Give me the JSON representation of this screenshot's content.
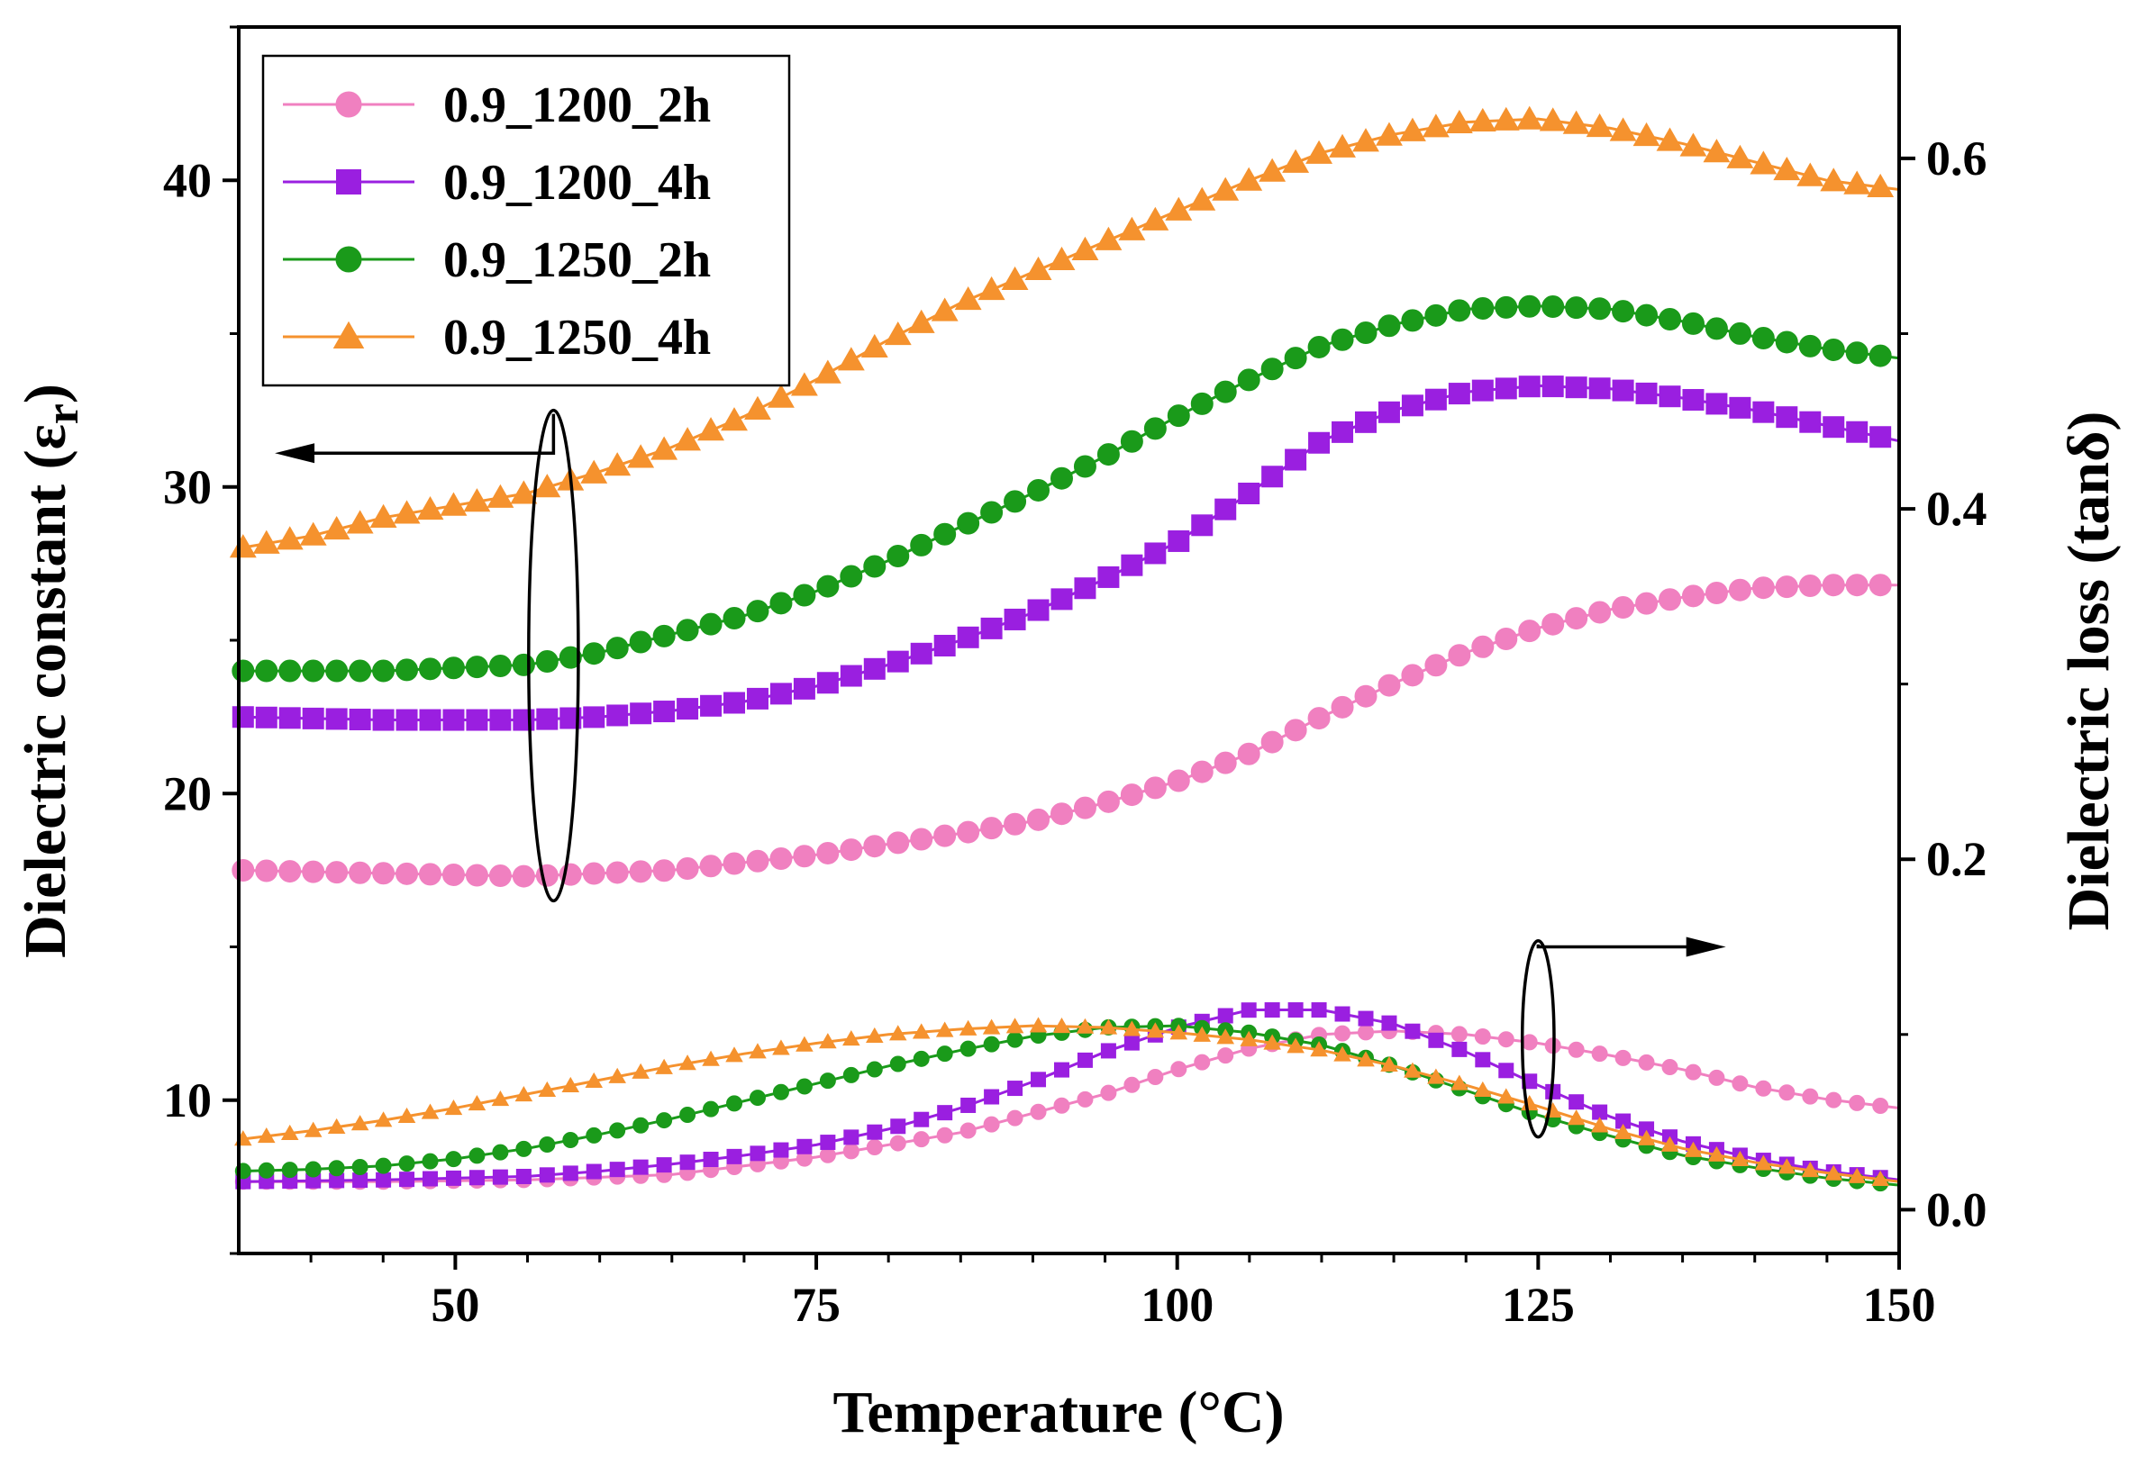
{
  "chart_data": {
    "type": "line",
    "title": "",
    "xlabel": "Temperature (°C)",
    "ylabel_left_text": "Dielectric constant (",
    "ylabel_left_symbol": "ε",
    "ylabel_left_subscript": "r",
    "ylabel_left_close": ")",
    "ylabel_right": "Dielectric loss (tanδ)",
    "xlim": [
      35,
      150
    ],
    "ylim_left": [
      5,
      45
    ],
    "ylim_right": [
      -0.025,
      0.675
    ],
    "x_ticks": [
      50,
      75,
      100,
      125,
      150
    ],
    "x_tick_labels": [
      "50",
      "75",
      "100",
      "125",
      "150"
    ],
    "y_left_ticks": [
      10,
      20,
      30,
      40
    ],
    "y_left_tick_labels": [
      "10",
      "20",
      "30",
      "40"
    ],
    "y_right_ticks": [
      0.0,
      0.2,
      0.4,
      0.6
    ],
    "y_right_tick_labels": [
      "0.0",
      "0.2",
      "0.4",
      "0.6"
    ],
    "legend_position": "top-left",
    "series": [
      {
        "name": "0.9_1200_2h",
        "color": "#f080c0",
        "marker": "circle",
        "axis": "left",
        "points": [
          [
            35,
            17.5
          ],
          [
            45,
            17.4
          ],
          [
            55,
            17.3
          ],
          [
            65,
            17.5
          ],
          [
            75,
            18.0
          ],
          [
            85,
            18.7
          ],
          [
            90,
            19.1
          ],
          [
            95,
            19.7
          ],
          [
            100,
            20.4
          ],
          [
            105,
            21.3
          ],
          [
            110,
            22.5
          ],
          [
            115,
            23.6
          ],
          [
            120,
            24.6
          ],
          [
            125,
            25.4
          ],
          [
            130,
            26.0
          ],
          [
            135,
            26.4
          ],
          [
            140,
            26.7
          ],
          [
            145,
            26.8
          ],
          [
            150,
            26.8
          ]
        ]
      },
      {
        "name": "0.9_1200_4h",
        "color": "#9a1fe0",
        "marker": "square",
        "axis": "left",
        "points": [
          [
            35,
            22.5
          ],
          [
            45,
            22.4
          ],
          [
            55,
            22.4
          ],
          [
            60,
            22.5
          ],
          [
            65,
            22.7
          ],
          [
            70,
            23.0
          ],
          [
            75,
            23.5
          ],
          [
            80,
            24.2
          ],
          [
            85,
            25.0
          ],
          [
            90,
            25.9
          ],
          [
            95,
            27.0
          ],
          [
            100,
            28.2
          ],
          [
            105,
            29.8
          ],
          [
            110,
            31.5
          ],
          [
            115,
            32.5
          ],
          [
            120,
            33.1
          ],
          [
            125,
            33.3
          ],
          [
            130,
            33.2
          ],
          [
            135,
            32.9
          ],
          [
            140,
            32.5
          ],
          [
            145,
            32.0
          ],
          [
            150,
            31.5
          ]
        ]
      },
      {
        "name": "0.9_1250_2h",
        "color": "#1a9a1a",
        "marker": "circle",
        "axis": "left",
        "points": [
          [
            35,
            24.0
          ],
          [
            45,
            24.0
          ],
          [
            55,
            24.2
          ],
          [
            60,
            24.6
          ],
          [
            65,
            25.2
          ],
          [
            70,
            25.8
          ],
          [
            75,
            26.6
          ],
          [
            80,
            27.6
          ],
          [
            85,
            28.7
          ],
          [
            90,
            29.8
          ],
          [
            95,
            31.0
          ],
          [
            100,
            32.3
          ],
          [
            105,
            33.5
          ],
          [
            110,
            34.6
          ],
          [
            115,
            35.3
          ],
          [
            120,
            35.8
          ],
          [
            125,
            35.9
          ],
          [
            130,
            35.8
          ],
          [
            135,
            35.4
          ],
          [
            140,
            34.9
          ],
          [
            145,
            34.5
          ],
          [
            150,
            34.2
          ]
        ]
      },
      {
        "name": "0.9_1250_4h",
        "color": "#f5922e",
        "marker": "triangle",
        "axis": "left",
        "points": [
          [
            35,
            28.0
          ],
          [
            40,
            28.4
          ],
          [
            45,
            29.0
          ],
          [
            50,
            29.4
          ],
          [
            55,
            29.8
          ],
          [
            60,
            30.5
          ],
          [
            65,
            31.3
          ],
          [
            70,
            32.3
          ],
          [
            75,
            33.5
          ],
          [
            80,
            34.8
          ],
          [
            85,
            36.0
          ],
          [
            90,
            37.0
          ],
          [
            95,
            38.0
          ],
          [
            100,
            39.0
          ],
          [
            105,
            40.0
          ],
          [
            110,
            40.9
          ],
          [
            115,
            41.5
          ],
          [
            120,
            41.9
          ],
          [
            125,
            42.0
          ],
          [
            130,
            41.7
          ],
          [
            135,
            41.2
          ],
          [
            140,
            40.6
          ],
          [
            145,
            40.0
          ],
          [
            150,
            39.7
          ]
        ]
      },
      {
        "name": "0.9_1200_2h",
        "color": "#f080c0",
        "marker": "circle",
        "axis": "right",
        "points": [
          [
            35,
            0.016
          ],
          [
            45,
            0.016
          ],
          [
            55,
            0.017
          ],
          [
            65,
            0.02
          ],
          [
            75,
            0.03
          ],
          [
            85,
            0.044
          ],
          [
            95,
            0.066
          ],
          [
            100,
            0.08
          ],
          [
            105,
            0.092
          ],
          [
            110,
            0.1
          ],
          [
            115,
            0.102
          ],
          [
            120,
            0.1
          ],
          [
            125,
            0.095
          ],
          [
            130,
            0.088
          ],
          [
            135,
            0.08
          ],
          [
            140,
            0.07
          ],
          [
            145,
            0.063
          ],
          [
            150,
            0.058
          ]
        ]
      },
      {
        "name": "0.9_1200_4h",
        "color": "#9a1fe0",
        "marker": "square",
        "axis": "right",
        "points": [
          [
            35,
            0.016
          ],
          [
            45,
            0.017
          ],
          [
            55,
            0.019
          ],
          [
            60,
            0.022
          ],
          [
            65,
            0.026
          ],
          [
            70,
            0.031
          ],
          [
            75,
            0.037
          ],
          [
            80,
            0.046
          ],
          [
            85,
            0.058
          ],
          [
            90,
            0.073
          ],
          [
            95,
            0.09
          ],
          [
            100,
            0.104
          ],
          [
            105,
            0.114
          ],
          [
            110,
            0.114
          ],
          [
            115,
            0.106
          ],
          [
            120,
            0.09
          ],
          [
            125,
            0.071
          ],
          [
            130,
            0.053
          ],
          [
            135,
            0.039
          ],
          [
            140,
            0.029
          ],
          [
            145,
            0.022
          ],
          [
            150,
            0.017
          ]
        ]
      },
      {
        "name": "0.9_1250_2h",
        "color": "#1a9a1a",
        "marker": "circle",
        "axis": "right",
        "points": [
          [
            35,
            0.022
          ],
          [
            40,
            0.023
          ],
          [
            45,
            0.025
          ],
          [
            50,
            0.029
          ],
          [
            55,
            0.035
          ],
          [
            60,
            0.043
          ],
          [
            65,
            0.052
          ],
          [
            70,
            0.062
          ],
          [
            75,
            0.072
          ],
          [
            80,
            0.082
          ],
          [
            85,
            0.091
          ],
          [
            90,
            0.099
          ],
          [
            95,
            0.104
          ],
          [
            100,
            0.105
          ],
          [
            105,
            0.101
          ],
          [
            110,
            0.094
          ],
          [
            115,
            0.082
          ],
          [
            120,
            0.068
          ],
          [
            125,
            0.054
          ],
          [
            130,
            0.042
          ],
          [
            135,
            0.031
          ],
          [
            140,
            0.024
          ],
          [
            145,
            0.018
          ],
          [
            150,
            0.014
          ]
        ]
      },
      {
        "name": "0.9_1250_4h",
        "color": "#f5922e",
        "marker": "triangle",
        "axis": "right",
        "points": [
          [
            35,
            0.04
          ],
          [
            40,
            0.045
          ],
          [
            45,
            0.051
          ],
          [
            50,
            0.058
          ],
          [
            55,
            0.066
          ],
          [
            60,
            0.074
          ],
          [
            65,
            0.082
          ],
          [
            70,
            0.089
          ],
          [
            75,
            0.095
          ],
          [
            80,
            0.1
          ],
          [
            85,
            0.103
          ],
          [
            90,
            0.105
          ],
          [
            95,
            0.104
          ],
          [
            100,
            0.101
          ],
          [
            105,
            0.097
          ],
          [
            110,
            0.091
          ],
          [
            115,
            0.082
          ],
          [
            120,
            0.071
          ],
          [
            125,
            0.059
          ],
          [
            130,
            0.046
          ],
          [
            135,
            0.035
          ],
          [
            140,
            0.027
          ],
          [
            145,
            0.021
          ],
          [
            150,
            0.016
          ]
        ]
      }
    ],
    "annotations": [
      {
        "type": "ellipse",
        "x": 56.8,
        "y": 24.5,
        "rx_data": 1.72,
        "ry_data": 8.0,
        "arrow_to_x": 37.5,
        "arrow_y": 31.1,
        "meaning": "left-axis curves"
      },
      {
        "type": "ellipse",
        "x": 125.0,
        "y": 12.0,
        "rx_data": 1.1,
        "ry_data": 3.2,
        "arrow_to_x": 138.0,
        "arrow_y": 15.0,
        "meaning": "right-axis curves"
      }
    ]
  }
}
